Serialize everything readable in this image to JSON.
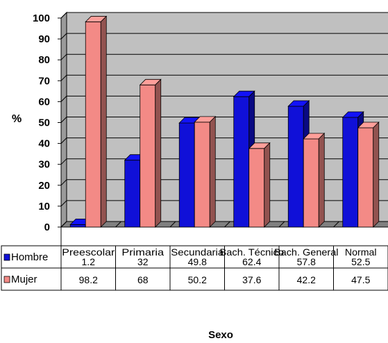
{
  "chart_data": {
    "type": "bar",
    "categories": [
      "Preescolar",
      "Primaria",
      "Secundaria",
      "Bach. Técnico",
      "Bach. General",
      "Normal"
    ],
    "category_labels": [
      "Preescolar",
      "Primaria",
      "Secundaria",
      "Bach. Técnico",
      "Bach. General",
      "Normal"
    ],
    "series": [
      {
        "name": "Hombre",
        "values": [
          1.2,
          32,
          49.8,
          62.4,
          57.8,
          52.5
        ],
        "labels": [
          "1.2",
          "32",
          "49.8",
          "62.4",
          "57.8",
          "52.5"
        ],
        "color": "#1010d8"
      },
      {
        "name": "Mujer",
        "values": [
          98.2,
          68,
          50.2,
          37.6,
          42.2,
          47.5
        ],
        "labels": [
          "98.2",
          "68",
          "50.2",
          "37.6",
          "42.2",
          "47.5"
        ],
        "color": "#f38a86"
      }
    ],
    "xlabel": "Sexo",
    "ylabel": "%",
    "ylim": [
      0,
      100
    ],
    "yticks": [
      "0",
      "10",
      "20",
      "30",
      "40",
      "50",
      "60",
      "70",
      "80",
      "90",
      "100"
    ],
    "grid": true,
    "legend": "data-table-left",
    "plot_background": "#c0c0c0",
    "three_d": true
  }
}
